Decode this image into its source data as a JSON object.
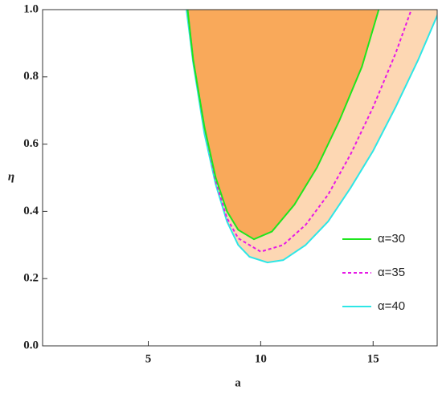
{
  "chart_data": {
    "type": "line",
    "xlabel": "a",
    "ylabel": "η",
    "xlim": [
      0.3,
      17.85
    ],
    "ylim": [
      0,
      1
    ],
    "xticks": [
      5,
      10,
      15
    ],
    "yticks": [
      {
        "value": 0,
        "label": "0.0"
      },
      0.2,
      0.4,
      0.6,
      0.8,
      {
        "value": 1,
        "label": "1.0"
      }
    ],
    "legend": "lower right",
    "series": [
      {
        "name": "α=30",
        "color": "#1ee61e",
        "fill": "#f9a95a",
        "dash": false,
        "x": [
          6.75,
          7.0,
          7.5,
          8.0,
          8.5,
          9.0,
          9.7,
          10.5,
          11.5,
          12.5,
          13.5,
          14.5,
          15.25
        ],
        "values": [
          1.0,
          0.85,
          0.65,
          0.5,
          0.4,
          0.345,
          0.317,
          0.34,
          0.42,
          0.53,
          0.67,
          0.83,
          1.0
        ]
      },
      {
        "name": "α=35",
        "color": "#e619e6",
        "dash": true,
        "x": [
          6.75,
          7.0,
          7.5,
          8.0,
          8.5,
          9.0,
          10.0,
          11.0,
          12.0,
          13.0,
          14.0,
          15.0,
          16.0,
          16.7
        ],
        "values": [
          1.0,
          0.85,
          0.65,
          0.49,
          0.38,
          0.32,
          0.28,
          0.3,
          0.36,
          0.45,
          0.57,
          0.71,
          0.87,
          1.0
        ]
      },
      {
        "name": "α=40",
        "color": "#2ee6e6",
        "fill": "#fdd7b3",
        "dash": false,
        "x": [
          6.7,
          7.0,
          7.5,
          8.0,
          8.5,
          9.0,
          9.5,
          10.3,
          11.0,
          12.0,
          13.0,
          14.0,
          15.0,
          16.0,
          17.0,
          17.9
        ],
        "values": [
          1.0,
          0.84,
          0.63,
          0.48,
          0.37,
          0.3,
          0.265,
          0.248,
          0.255,
          0.3,
          0.37,
          0.47,
          0.58,
          0.71,
          0.85,
          0.99
        ]
      }
    ]
  }
}
